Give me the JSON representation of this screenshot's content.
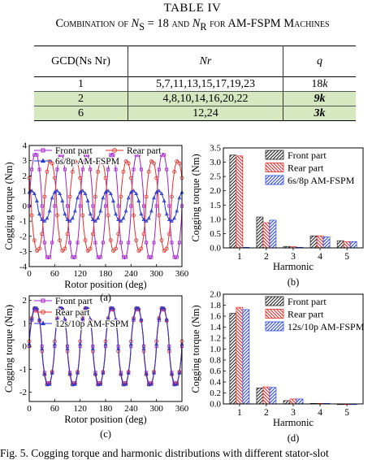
{
  "table": {
    "title": "TABLE IV",
    "caption_prefix": "Combination of ",
    "caption_ns": "N",
    "caption_ns_sub": "S",
    "caption_mid": " = 18 and ",
    "caption_nr": "N",
    "caption_nr_sub": "R",
    "caption_suffix": " for AM-FSPM Machines",
    "headers": [
      "GCD(Ns Nr)",
      "Nr",
      "q"
    ],
    "rows": [
      {
        "gcd": "1",
        "nr": "5,7,11,13,15,17,19,23",
        "q": "18k"
      },
      {
        "gcd": "2",
        "nr": "4,8,10,14,16,20,22",
        "q": "9k"
      },
      {
        "gcd": "6",
        "nr": "12,24",
        "q": "3k"
      }
    ],
    "highlight_color": "#d6e8bf"
  },
  "fig_caption": "Fig. 5.   Cogging torque and harmonic distributions with different stator-slot",
  "chart_data": [
    {
      "id": "a",
      "type": "line",
      "sublabel": "(a)",
      "xlabel": "Rotor position (deg)",
      "ylabel": "Cogging torque (Nm)",
      "xlim": [
        0,
        360
      ],
      "ylim": [
        -4,
        4
      ],
      "xticks": [
        0,
        60,
        120,
        180,
        240,
        300,
        360
      ],
      "yticks": [
        -4,
        -3,
        -2,
        -1,
        0,
        1,
        2,
        3,
        4
      ],
      "legend": [
        "Front part",
        "Rear part",
        "6s/8p AM-FSPM"
      ],
      "series": [
        {
          "name": "Front part",
          "color": "#a020c8",
          "marker": "square",
          "amplitude": 3.5,
          "periods": 6,
          "phase_deg": 0
        },
        {
          "name": "Rear part",
          "color": "#e8302a",
          "marker": "circle",
          "amplitude": 3.0,
          "periods": 6,
          "phase_deg": 150
        },
        {
          "name": "6s/8p AM-FSPM",
          "color": "#2838c8",
          "marker": "triangle",
          "amplitude": 1.0,
          "periods": 6,
          "phase_deg": 60
        }
      ]
    },
    {
      "id": "b",
      "type": "bar",
      "sublabel": "(b)",
      "xlabel": "Harmonic",
      "ylabel": "Cogging torque (Nm)",
      "ylim": [
        0,
        3.5
      ],
      "yticks": [
        0,
        0.5,
        1.0,
        1.5,
        2.0,
        2.5,
        3.0,
        3.5
      ],
      "categories": [
        "1",
        "2",
        "3",
        "4",
        "5"
      ],
      "legend": [
        "Front part",
        "Rear part",
        "6s/8p AM-FSPM"
      ],
      "series": [
        {
          "name": "Front part",
          "values": [
            3.25,
            1.08,
            0.05,
            0.42,
            0.25
          ]
        },
        {
          "name": "Rear part",
          "values": [
            3.22,
            0.88,
            0.04,
            0.42,
            0.22
          ]
        },
        {
          "name": "6s/8p AM-FSPM",
          "values": [
            0.02,
            0.97,
            0.02,
            0.38,
            0.22
          ]
        }
      ]
    },
    {
      "id": "c",
      "type": "line",
      "sublabel": "(c)",
      "xlabel": "Rotor position (deg)",
      "ylabel": "Cogging torque (Nm)",
      "xlim": [
        0,
        360
      ],
      "ylim": [
        -2.4,
        2.2
      ],
      "xticks": [
        0,
        60,
        120,
        180,
        240,
        300,
        360
      ],
      "yticks": [
        -2,
        -1,
        0,
        1,
        2
      ],
      "legend": [
        "Front part",
        "Rear part",
        "12s/10p AM-FSPM"
      ],
      "series": [
        {
          "name": "Front part",
          "color": "#a020c8",
          "marker": "square",
          "amplitude": 1.65,
          "periods": 6,
          "phase_deg": 0
        },
        {
          "name": "Rear part",
          "color": "#e8302a",
          "marker": "circle",
          "amplitude": 1.7,
          "periods": 6,
          "phase_deg": 3
        },
        {
          "name": "12s/10p AM-FSPM",
          "color": "#2838c8",
          "marker": "triangle",
          "amplitude": 1.72,
          "periods": 6,
          "phase_deg": 1
        }
      ]
    },
    {
      "id": "d",
      "type": "bar",
      "sublabel": "(d)",
      "xlabel": "Harmonic",
      "ylabel": "Cogging torque (Nm)",
      "ylim": [
        0,
        2.0
      ],
      "yticks": [
        0,
        0.2,
        0.4,
        0.6,
        0.8,
        1.0,
        1.2,
        1.4,
        1.6,
        1.8,
        2.0
      ],
      "categories": [
        "1",
        "2",
        "3",
        "4",
        "5"
      ],
      "legend": [
        "Front part",
        "Rear part",
        "12s/10p AM-FSPM"
      ],
      "series": [
        {
          "name": "Front part",
          "values": [
            1.65,
            0.29,
            0.06,
            0.01,
            0.0
          ]
        },
        {
          "name": "Rear part",
          "values": [
            1.76,
            0.31,
            0.09,
            0.01,
            0.0
          ]
        },
        {
          "name": "12s/10p AM-FSPM",
          "values": [
            1.72,
            0.3,
            0.09,
            0.01,
            0.0
          ]
        }
      ]
    }
  ]
}
